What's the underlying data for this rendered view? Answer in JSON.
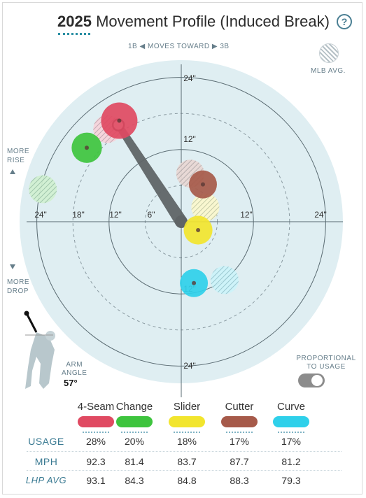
{
  "header": {
    "year": "2025",
    "title": "Movement Profile (Induced Break)",
    "help_icon": "?"
  },
  "direction_label": {
    "left": "1B",
    "middle": "MOVES TOWARD",
    "right": "3B"
  },
  "legend": {
    "mlb_avg": "MLB AVG."
  },
  "side_labels": {
    "rise_line1": "MORE",
    "rise_line2": "RISE",
    "drop_line1": "MORE",
    "drop_line2": "DROP"
  },
  "arm": {
    "label_line1": "ARM",
    "label_line2": "ANGLE",
    "value": "57°"
  },
  "toggle": {
    "label_line1": "PROPORTIONAL",
    "label_line2": "TO USAGE",
    "on": true
  },
  "table": {
    "row_labels": {
      "usage": "USAGE",
      "mph": "MPH",
      "lhp_avg": "LHP AVG"
    }
  },
  "chart_data": {
    "type": "scatter",
    "title": "Movement Profile (Induced Break)",
    "x_unit": "inches horizontal break",
    "y_unit": "inches induced vertical break",
    "ring_labels": [
      "6\"",
      "12\"",
      "18\"",
      "24\""
    ],
    "x_tick_labels": [
      "24\"",
      "18\"",
      "12\"",
      "6\"",
      "12\"",
      "24\""
    ],
    "y_tick_labels": [
      "24\"",
      "12\"",
      "12\"",
      "24\""
    ],
    "arm_angle_deg": 57,
    "pitches": [
      {
        "name": "4-Seam",
        "color": "#e04a62",
        "usage": "28%",
        "mph": "92.3",
        "lhp_avg": "93.1",
        "hb": -10.3,
        "ivb": 16.8,
        "mlb_hb": -12.3,
        "mlb_ivb": 15.4
      },
      {
        "name": "Change",
        "color": "#3ec43e",
        "usage": "20%",
        "mph": "81.4",
        "lhp_avg": "84.3",
        "hb": -15.7,
        "ivb": 12.3,
        "mlb_hb": -23.0,
        "mlb_ivb": 5.4
      },
      {
        "name": "Slider",
        "color": "#f2e52e",
        "usage": "18%",
        "mph": "83.7",
        "lhp_avg": "84.8",
        "hb": 2.8,
        "ivb": -1.4,
        "mlb_hb": 4.0,
        "mlb_ivb": 2.4
      },
      {
        "name": "Cutter",
        "color": "#a65a4a",
        "usage": "17%",
        "mph": "87.7",
        "lhp_avg": "88.3",
        "hb": 3.6,
        "ivb": 6.2,
        "mlb_hb": 1.5,
        "mlb_ivb": 8.0
      },
      {
        "name": "Curve",
        "color": "#2fd0ea",
        "usage": "17%",
        "mph": "81.2",
        "lhp_avg": "79.3",
        "hb": 2.1,
        "ivb": -10.2,
        "mlb_hb": 7.2,
        "mlb_ivb": -9.7
      }
    ]
  }
}
